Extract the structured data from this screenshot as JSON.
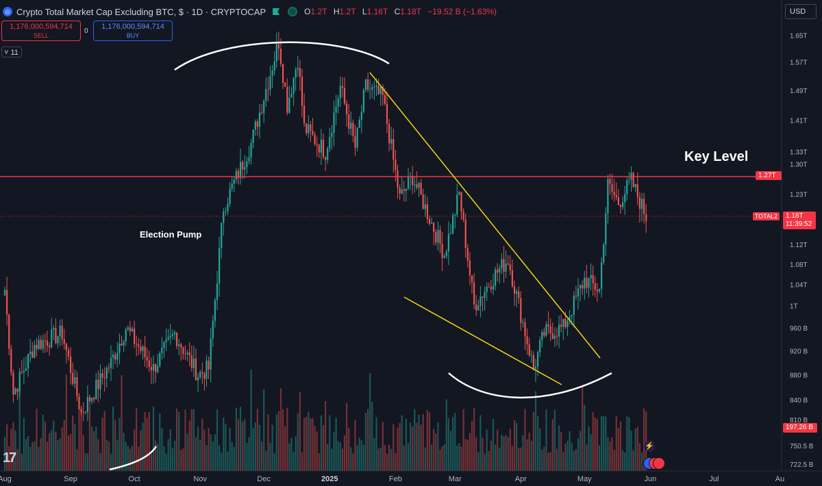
{
  "header": {
    "title": "Crypto Total Market Cap Excluding BTC, $ · 1D · CRYPTOCAP",
    "ohlc": [
      {
        "k": "O",
        "v": "1.2T"
      },
      {
        "k": "H",
        "v": "1.2T"
      },
      {
        "k": "L",
        "v": "1.16T"
      },
      {
        "k": "C",
        "v": "1.18T"
      },
      {
        "k": "",
        "v": "−19.52 B (−1.63%)"
      }
    ]
  },
  "trade": {
    "sell_value": "1,176,000,594,714",
    "sell_label": "SELL",
    "buy_value": "1,176,000,594,714",
    "buy_label": "BUY",
    "spread": "0"
  },
  "indicator_count": "11",
  "currency": "USD",
  "annotations": {
    "key_level": "Key Level",
    "election_pump": "Election Pump"
  },
  "price_labels": {
    "key_level_value": "1.27T",
    "symbol": "TOTAL2",
    "last_price": "1.18T",
    "countdown": "11:39:52",
    "volume_value": "197.26 B"
  },
  "colors": {
    "background": "#131722",
    "up": "#26a69a",
    "down": "#ef5350",
    "key_level_line": "#f23645",
    "trendline": "#f5d90a",
    "drawing": "#ffffff"
  },
  "chart_data": {
    "type": "candlestick",
    "timeframe": "1D",
    "x_ticks": [
      "Aug",
      "Sep",
      "Oct",
      "Nov",
      "Dec",
      "2025",
      "Feb",
      "Mar",
      "Apr",
      "May",
      "Jun",
      "Jul",
      "Au"
    ],
    "price_axis_ticks": [
      "1.65T",
      "1.57T",
      "1.49T",
      "1.41T",
      "1.33T",
      "1.30T",
      "1.23T",
      "1.12T",
      "1.08T",
      "1.04T",
      "1T",
      "960 B",
      "920 B",
      "880 B",
      "840 B",
      "810 B",
      "750.5 B",
      "722.5 B"
    ],
    "price_scale": "log",
    "price_range": [
      0.7,
      1.7
    ],
    "key_level": 1.27,
    "last_close": 1.18,
    "close_path": [
      {
        "date": "2024-08-01",
        "close": 1.03
      },
      {
        "date": "2024-08-05",
        "close": 0.85
      },
      {
        "date": "2024-08-15",
        "close": 0.93
      },
      {
        "date": "2024-08-28",
        "close": 0.95
      },
      {
        "date": "2024-09-06",
        "close": 0.82
      },
      {
        "date": "2024-09-20",
        "close": 0.9
      },
      {
        "date": "2024-09-27",
        "close": 0.96
      },
      {
        "date": "2024-10-10",
        "close": 0.89
      },
      {
        "date": "2024-10-20",
        "close": 0.95
      },
      {
        "date": "2024-10-31",
        "close": 0.88
      },
      {
        "date": "2024-11-05",
        "close": 0.89
      },
      {
        "date": "2024-11-12",
        "close": 1.2
      },
      {
        "date": "2024-11-25",
        "close": 1.35
      },
      {
        "date": "2024-12-05",
        "close": 1.56
      },
      {
        "date": "2024-12-08",
        "close": 1.63
      },
      {
        "date": "2024-12-12",
        "close": 1.45
      },
      {
        "date": "2024-12-17",
        "close": 1.58
      },
      {
        "date": "2024-12-20",
        "close": 1.39
      },
      {
        "date": "2024-12-30",
        "close": 1.33
      },
      {
        "date": "2025-01-06",
        "close": 1.5
      },
      {
        "date": "2025-01-13",
        "close": 1.34
      },
      {
        "date": "2025-01-18",
        "close": 1.5
      },
      {
        "date": "2025-01-26",
        "close": 1.47
      },
      {
        "date": "2025-02-03",
        "close": 1.22
      },
      {
        "date": "2025-02-09",
        "close": 1.27
      },
      {
        "date": "2025-02-24",
        "close": 1.1
      },
      {
        "date": "2025-03-03",
        "close": 1.23
      },
      {
        "date": "2025-03-10",
        "close": 1.0
      },
      {
        "date": "2025-03-20",
        "close": 1.06
      },
      {
        "date": "2025-03-26",
        "close": 1.09
      },
      {
        "date": "2025-04-07",
        "close": 0.89
      },
      {
        "date": "2025-04-12",
        "close": 0.95
      },
      {
        "date": "2025-04-21",
        "close": 0.96
      },
      {
        "date": "2025-05-01",
        "close": 1.05
      },
      {
        "date": "2025-05-08",
        "close": 1.03
      },
      {
        "date": "2025-05-12",
        "close": 1.25
      },
      {
        "date": "2025-05-17",
        "close": 1.21
      },
      {
        "date": "2025-05-23",
        "close": 1.26
      },
      {
        "date": "2025-05-30",
        "close": 1.18
      }
    ]
  }
}
